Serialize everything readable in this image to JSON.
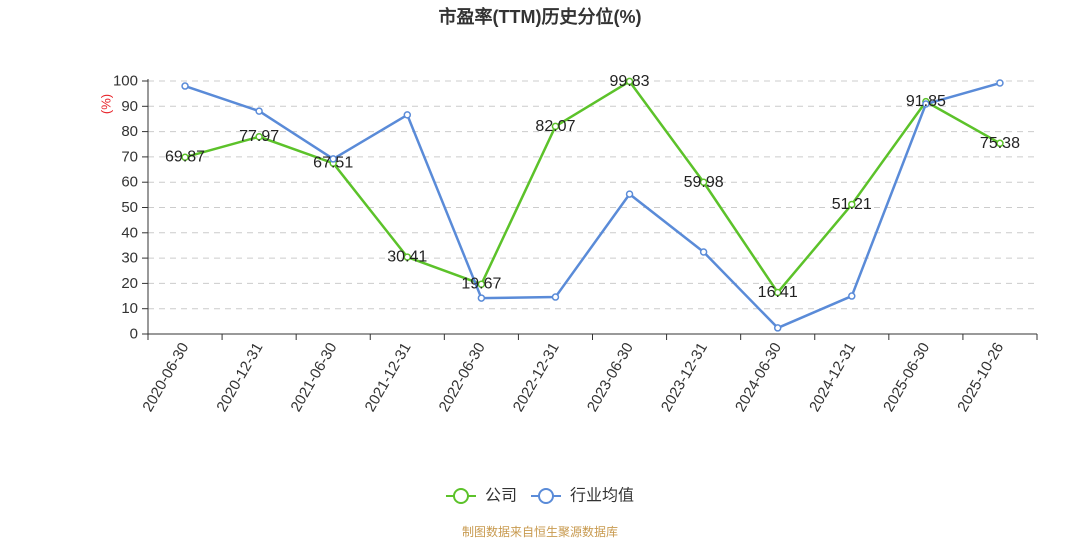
{
  "footer": "制图数据来自恒生聚源数据库",
  "colors": {
    "background": "#ffffff",
    "title": "#333333",
    "axis": "#333333",
    "grid": "#cccccc",
    "ylabel": "#e8262d",
    "data_label": "#222222",
    "footer": "#c89a4f"
  },
  "chart_data": {
    "type": "line",
    "title": "市盈率(TTM)历史分位(%)",
    "ylabel": "(%)",
    "ylim": [
      0,
      100
    ],
    "ytick_step": 10,
    "grid": true,
    "legend": "bottom-center",
    "categories": [
      "2020-06-30",
      "2020-12-31",
      "2021-06-30",
      "2021-12-31",
      "2022-06-30",
      "2022-12-31",
      "2023-06-30",
      "2023-12-31",
      "2024-06-30",
      "2024-12-31",
      "2025-06-30",
      "2025-10-26"
    ],
    "series": [
      {
        "name": "公司",
        "color": "#5cc22a",
        "show_data_labels": true,
        "values": [
          69.87,
          77.97,
          67.51,
          30.41,
          19.67,
          82.07,
          99.83,
          59.98,
          16.41,
          51.21,
          91.85,
          75.38
        ]
      },
      {
        "name": "行业均值",
        "color": "#5a8bd8",
        "show_data_labels": false,
        "values": [
          98.0,
          88.1,
          69.2,
          86.6,
          14.2,
          14.6,
          55.3,
          32.4,
          2.4,
          15.0,
          90.9,
          99.2
        ]
      }
    ]
  }
}
